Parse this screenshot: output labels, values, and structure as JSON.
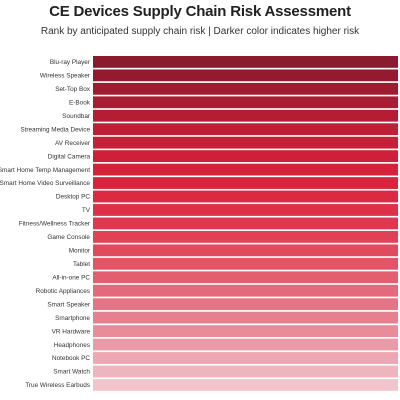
{
  "chart_data": {
    "type": "bar",
    "orientation": "horizontal",
    "title": "CE Devices Supply Chain Risk Assessment",
    "subtitle": "Rank by anticipated supply chain risk | Darker color indicates higher risk",
    "categories": [
      "Blu-ray Player",
      "Wireless Speaker",
      "Set-Top Box",
      "E-Book",
      "Soundbar",
      "Streaming Media Device",
      "AV Receiver",
      "Digital Camera",
      "Smart Home Temp Management",
      "Smart Home Video Surveillance",
      "Desktop PC",
      "TV",
      "Fitness/Wellness Tracker",
      "Game Console",
      "Monitor",
      "Tablet",
      "All-in-one PC",
      "Robotic Appliances",
      "Smart Speaker",
      "Smartphone",
      "VR Hardware",
      "Headphones",
      "Notebook PC",
      "Smart Watch",
      "True Wireless Earbuds"
    ],
    "values": [
      1,
      1,
      1,
      1,
      1,
      1,
      1,
      1,
      1,
      1,
      1,
      1,
      1,
      1,
      1,
      1,
      1,
      1,
      1,
      1,
      1,
      1,
      1,
      1,
      1
    ],
    "colors": [
      "#8b1a2e",
      "#951a2f",
      "#9f1b30",
      "#aa1c31",
      "#b41d33",
      "#be1f35",
      "#c71f37",
      "#ce2139",
      "#d4223b",
      "#d9243d",
      "#dc2a42",
      "#de3047",
      "#df384e",
      "#e04155",
      "#e14a5d",
      "#e25466",
      "#e35f70",
      "#e4697a",
      "#e57484",
      "#e6808f",
      "#e88c9a",
      "#ea99a6",
      "#eca7b2",
      "#efb5bf",
      "#f2c5cd"
    ],
    "xlim": [
      0,
      1
    ],
    "grid": false,
    "legend": "none"
  }
}
